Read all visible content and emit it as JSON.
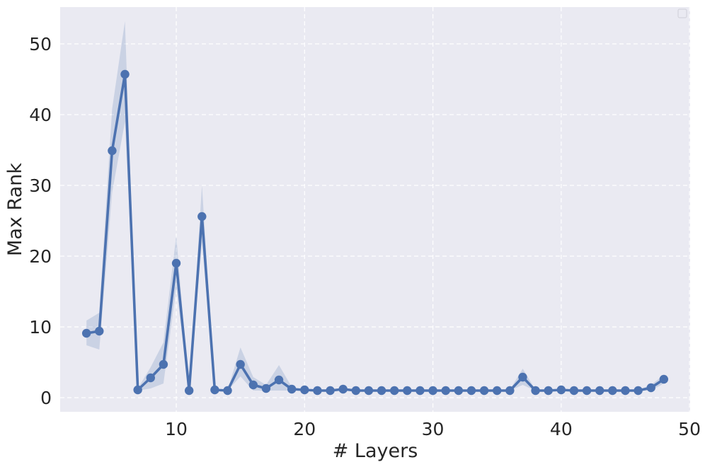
{
  "chart_data": {
    "type": "line",
    "xlabel": "# Layers",
    "ylabel": "Max Rank",
    "xlim": [
      0.95,
      50.05
    ],
    "ylim": [
      -2.0,
      55.2
    ],
    "xticks": [
      10,
      20,
      30,
      40,
      50
    ],
    "yticks": [
      0,
      10,
      20,
      30,
      40,
      50
    ],
    "grid": true,
    "legend": "top-right",
    "colors": {
      "line": "#4c72b0",
      "band": "#4c72b0",
      "plot_bg": "#eaeaf2",
      "grid": "#ffffff",
      "text": "#262626"
    },
    "series": [
      {
        "x": [
          3,
          4,
          5,
          6,
          7,
          8,
          9,
          10,
          11,
          12,
          13,
          14,
          15,
          16,
          17,
          18,
          19,
          20,
          21,
          22,
          23,
          24,
          25,
          26,
          27,
          28,
          29,
          30,
          31,
          32,
          33,
          34,
          35,
          36,
          37,
          38,
          39,
          40,
          41,
          42,
          43,
          44,
          45,
          46,
          47,
          48
        ],
        "y": [
          9.1,
          9.4,
          34.9,
          45.7,
          1.1,
          2.8,
          4.7,
          19.0,
          1.0,
          25.6,
          1.1,
          1.0,
          4.7,
          1.8,
          1.3,
          2.5,
          1.2,
          1.1,
          1.0,
          1.0,
          1.2,
          1.0,
          1.0,
          1.0,
          1.0,
          1.0,
          1.0,
          1.0,
          1.0,
          1.0,
          1.0,
          1.0,
          1.0,
          1.0,
          2.9,
          1.0,
          1.0,
          1.1,
          1.0,
          1.0,
          1.0,
          1.0,
          1.0,
          1.0,
          1.4,
          2.6
        ],
        "lower": [
          7.4,
          6.8,
          29.0,
          39.0,
          1.0,
          1.3,
          2.0,
          15.5,
          1.0,
          22.0,
          1.0,
          1.0,
          3.0,
          1.0,
          1.0,
          1.0,
          1.0,
          1.0,
          1.0,
          1.0,
          1.0,
          1.0,
          1.0,
          1.0,
          1.0,
          1.0,
          1.0,
          1.0,
          1.0,
          1.0,
          1.0,
          1.0,
          1.0,
          1.0,
          1.8,
          1.0,
          1.0,
          1.0,
          1.0,
          1.0,
          1.0,
          1.0,
          1.0,
          1.0,
          1.0,
          2.0
        ],
        "upper": [
          10.9,
          12.0,
          40.8,
          53.2,
          1.3,
          4.3,
          7.8,
          22.9,
          1.0,
          30.0,
          1.3,
          1.0,
          7.1,
          2.9,
          1.8,
          4.6,
          1.5,
          1.2,
          1.1,
          1.1,
          1.4,
          1.1,
          1.1,
          1.1,
          1.1,
          1.1,
          1.1,
          1.1,
          1.1,
          1.1,
          1.1,
          1.1,
          1.1,
          1.1,
          4.1,
          1.1,
          1.1,
          1.2,
          1.1,
          1.1,
          1.1,
          1.1,
          1.1,
          1.1,
          1.8,
          3.2
        ]
      }
    ]
  }
}
